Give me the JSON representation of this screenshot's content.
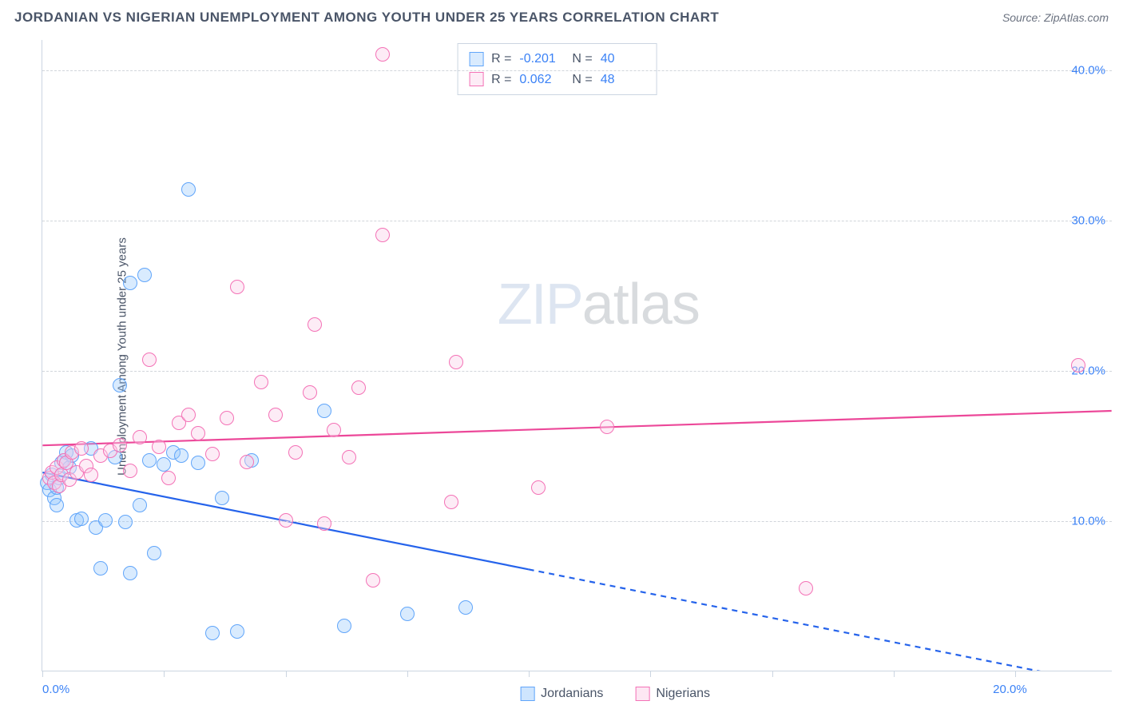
{
  "title": "JORDANIAN VS NIGERIAN UNEMPLOYMENT AMONG YOUTH UNDER 25 YEARS CORRELATION CHART",
  "source": "Source: ZipAtlas.com",
  "y_axis_label": "Unemployment Among Youth under 25 years",
  "watermark": {
    "part1": "ZIP",
    "part2": "atlas"
  },
  "chart": {
    "type": "scatter",
    "xlim": [
      0,
      22
    ],
    "ylim": [
      0,
      42
    ],
    "y_ticks": [
      10,
      20,
      30,
      40
    ],
    "y_tick_labels": [
      "10.0%",
      "20.0%",
      "30.0%",
      "40.0%"
    ],
    "x_ticks": [
      0,
      2.5,
      5,
      7.5,
      10,
      12.5,
      15,
      17.5,
      20
    ],
    "x_tick_labels": {
      "0": "0.0%",
      "20": "20.0%"
    },
    "background_color": "#ffffff",
    "grid_color": "#d1d5db",
    "axis_color": "#cbd5e1",
    "tick_label_color": "#3b82f6",
    "marker_radius": 9,
    "marker_stroke_width": 1.5,
    "series": [
      {
        "name": "Jordanians",
        "fill_color": "rgba(147,197,253,0.35)",
        "stroke_color": "#60a5fa",
        "R": "-0.201",
        "N": "40",
        "trend": {
          "color": "#2563eb",
          "width": 2.2,
          "y_at_x0": 13.2,
          "y_at_xmax": -1.0,
          "solid_until_x": 10.0
        },
        "points": [
          [
            0.1,
            12.5
          ],
          [
            0.15,
            12.0
          ],
          [
            0.2,
            13.0
          ],
          [
            0.25,
            11.5
          ],
          [
            0.3,
            12.2
          ],
          [
            0.3,
            11.0
          ],
          [
            0.35,
            12.8
          ],
          [
            0.4,
            13.8
          ],
          [
            0.45,
            14.0
          ],
          [
            0.5,
            14.5
          ],
          [
            0.55,
            13.5
          ],
          [
            0.6,
            14.3
          ],
          [
            0.7,
            10.0
          ],
          [
            0.8,
            10.1
          ],
          [
            1.0,
            14.8
          ],
          [
            1.1,
            9.5
          ],
          [
            1.2,
            6.8
          ],
          [
            1.3,
            10.0
          ],
          [
            1.5,
            14.2
          ],
          [
            1.6,
            19.0
          ],
          [
            1.7,
            9.9
          ],
          [
            1.8,
            6.5
          ],
          [
            1.8,
            25.8
          ],
          [
            2.0,
            11.0
          ],
          [
            2.1,
            26.3
          ],
          [
            2.2,
            14.0
          ],
          [
            2.3,
            7.8
          ],
          [
            2.5,
            13.7
          ],
          [
            2.7,
            14.5
          ],
          [
            2.85,
            14.3
          ],
          [
            3.0,
            32.0
          ],
          [
            3.2,
            13.8
          ],
          [
            3.5,
            2.5
          ],
          [
            3.7,
            11.5
          ],
          [
            4.0,
            2.6
          ],
          [
            4.3,
            14.0
          ],
          [
            5.8,
            17.3
          ],
          [
            6.2,
            3.0
          ],
          [
            7.5,
            3.8
          ],
          [
            8.7,
            4.2
          ]
        ]
      },
      {
        "name": "Nigerians",
        "fill_color": "rgba(251,207,232,0.4)",
        "stroke_color": "#f472b6",
        "R": "0.062",
        "N": "48",
        "trend": {
          "color": "#ec4899",
          "width": 2.2,
          "y_at_x0": 15.0,
          "y_at_xmax": 17.3,
          "solid_until_x": 22
        },
        "points": [
          [
            0.15,
            12.8
          ],
          [
            0.2,
            13.2
          ],
          [
            0.25,
            12.5
          ],
          [
            0.3,
            13.5
          ],
          [
            0.35,
            12.3
          ],
          [
            0.4,
            13.0
          ],
          [
            0.45,
            14.0
          ],
          [
            0.5,
            13.8
          ],
          [
            0.55,
            12.7
          ],
          [
            0.6,
            14.5
          ],
          [
            0.7,
            13.2
          ],
          [
            0.8,
            14.8
          ],
          [
            0.9,
            13.6
          ],
          [
            1.0,
            13.0
          ],
          [
            1.2,
            14.3
          ],
          [
            1.4,
            14.6
          ],
          [
            1.6,
            15.0
          ],
          [
            1.8,
            13.3
          ],
          [
            2.0,
            15.5
          ],
          [
            2.2,
            20.7
          ],
          [
            2.4,
            14.9
          ],
          [
            2.6,
            12.8
          ],
          [
            2.8,
            16.5
          ],
          [
            3.0,
            17.0
          ],
          [
            3.2,
            15.8
          ],
          [
            3.5,
            14.4
          ],
          [
            3.8,
            16.8
          ],
          [
            4.0,
            25.5
          ],
          [
            4.2,
            13.9
          ],
          [
            4.5,
            19.2
          ],
          [
            4.8,
            17.0
          ],
          [
            5.0,
            10.0
          ],
          [
            5.2,
            14.5
          ],
          [
            5.5,
            18.5
          ],
          [
            5.6,
            23.0
          ],
          [
            5.8,
            9.8
          ],
          [
            6.0,
            16.0
          ],
          [
            6.3,
            14.2
          ],
          [
            6.5,
            18.8
          ],
          [
            6.8,
            6.0
          ],
          [
            7.0,
            29.0
          ],
          [
            7.0,
            41.0
          ],
          [
            8.4,
            11.2
          ],
          [
            8.5,
            20.5
          ],
          [
            10.2,
            12.2
          ],
          [
            11.6,
            16.2
          ],
          [
            15.7,
            5.5
          ],
          [
            21.3,
            20.3
          ]
        ]
      }
    ],
    "legend": [
      {
        "label": "Jordanians",
        "fill": "rgba(147,197,253,0.45)",
        "stroke": "#60a5fa"
      },
      {
        "label": "Nigerians",
        "fill": "rgba(251,207,232,0.5)",
        "stroke": "#f472b6"
      }
    ]
  }
}
